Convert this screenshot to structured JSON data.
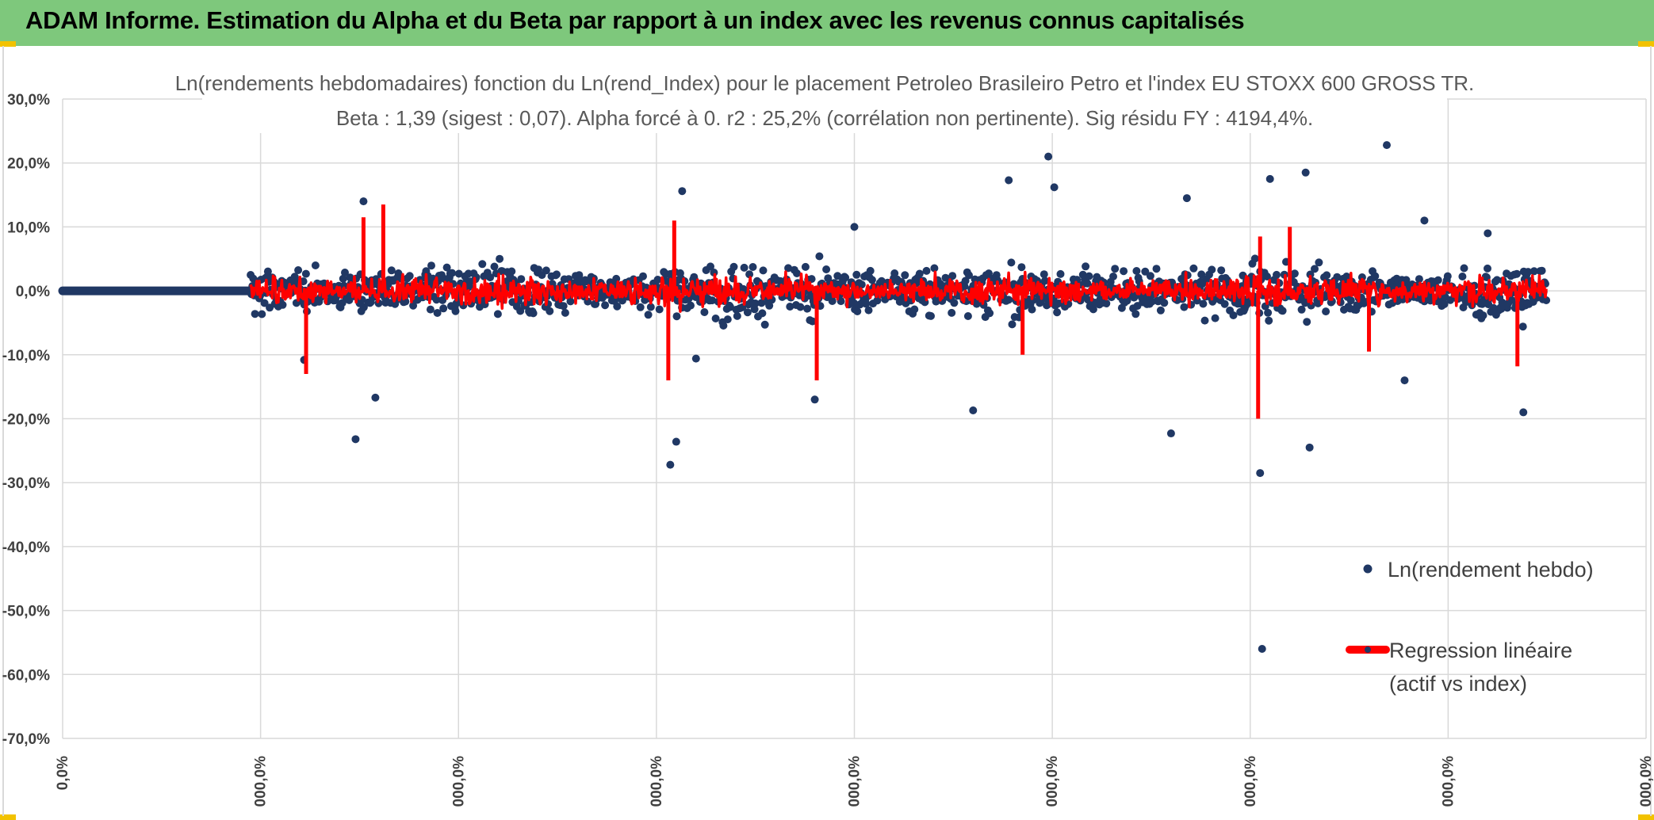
{
  "header": {
    "title": "ADAM Informe. Estimation du Alpha et du Beta par rapport à un index avec les revenus connus capitalisés",
    "colors": {
      "bar": "#7ec87c",
      "corner": "#f2c200"
    }
  },
  "chart_data": {
    "type": "scatter",
    "title_line1": "Ln(rendements hebdomadaires) fonction du Ln(rend_Index) pour le placement Petroleo Brasileiro Petro et l'index EU STOXX 600 GROSS TR.",
    "title_line2": "Beta : 1,39 (sigest : 0,07). Alpha forcé à 0. r2 : 25,2% (corrélation non pertinente). Sig résidu FY : 4194,4%.",
    "y_ticks": [
      "30,0%",
      "20,0%",
      "10,0%",
      "0,0%",
      "-10,0%",
      "-20,0%",
      "-30,0%",
      "-40,0%",
      "-50,0%",
      "-60,0%",
      "-70,0%"
    ],
    "x_ticks": [
      "0,0%",
      "000,0%",
      "000,0%",
      "000,0%",
      "000,0%",
      "000,0%",
      "000,0%",
      "000,0%",
      "000,0%"
    ],
    "ylim": [
      -0.7,
      0.3
    ],
    "xlim": [
      0,
      8
    ],
    "series": [
      {
        "name": "Ln(rendement hebdo)",
        "color": "#203864",
        "marker": "dot"
      },
      {
        "name": "Regression linéaire (actif vs index)",
        "name_line1": "Regression linéaire",
        "name_line2": "(actif vs index)",
        "color": "#ff0000",
        "marker": "line"
      }
    ],
    "zero_segment": {
      "x_start": 0,
      "x_end": 0.95,
      "y": 0
    },
    "data_x_range": [
      0.95,
      7.5
    ],
    "outliers": [
      {
        "x": 1.48,
        "y": -0.232
      },
      {
        "x": 1.58,
        "y": -0.167
      },
      {
        "x": 1.52,
        "y": 0.14
      },
      {
        "x": 1.22,
        "y": -0.108
      },
      {
        "x": 3.07,
        "y": -0.272
      },
      {
        "x": 3.1,
        "y": -0.236
      },
      {
        "x": 3.13,
        "y": 0.156
      },
      {
        "x": 3.2,
        "y": -0.106
      },
      {
        "x": 3.8,
        "y": -0.17
      },
      {
        "x": 4.0,
        "y": 0.1
      },
      {
        "x": 4.6,
        "y": -0.187
      },
      {
        "x": 4.98,
        "y": 0.21
      },
      {
        "x": 5.01,
        "y": 0.162
      },
      {
        "x": 4.78,
        "y": 0.173
      },
      {
        "x": 5.6,
        "y": -0.223
      },
      {
        "x": 5.68,
        "y": 0.145
      },
      {
        "x": 6.05,
        "y": -0.285
      },
      {
        "x": 6.06,
        "y": -0.56
      },
      {
        "x": 6.1,
        "y": 0.175
      },
      {
        "x": 6.28,
        "y": 0.185
      },
      {
        "x": 6.3,
        "y": -0.245
      },
      {
        "x": 6.69,
        "y": 0.228
      },
      {
        "x": 6.78,
        "y": -0.14
      },
      {
        "x": 7.38,
        "y": -0.19
      },
      {
        "x": 7.2,
        "y": 0.09
      },
      {
        "x": 6.88,
        "y": 0.11
      }
    ],
    "regression_spikes": [
      {
        "x": 1.23,
        "y": -0.13
      },
      {
        "x": 1.52,
        "y": 0.115
      },
      {
        "x": 1.62,
        "y": 0.135
      },
      {
        "x": 3.06,
        "y": -0.14
      },
      {
        "x": 3.09,
        "y": 0.11
      },
      {
        "x": 3.81,
        "y": -0.14
      },
      {
        "x": 6.04,
        "y": -0.2
      },
      {
        "x": 6.05,
        "y": 0.085
      },
      {
        "x": 6.2,
        "y": 0.1
      },
      {
        "x": 7.35,
        "y": -0.118
      },
      {
        "x": 6.6,
        "y": -0.095
      },
      {
        "x": 4.85,
        "y": -0.1
      }
    ]
  }
}
